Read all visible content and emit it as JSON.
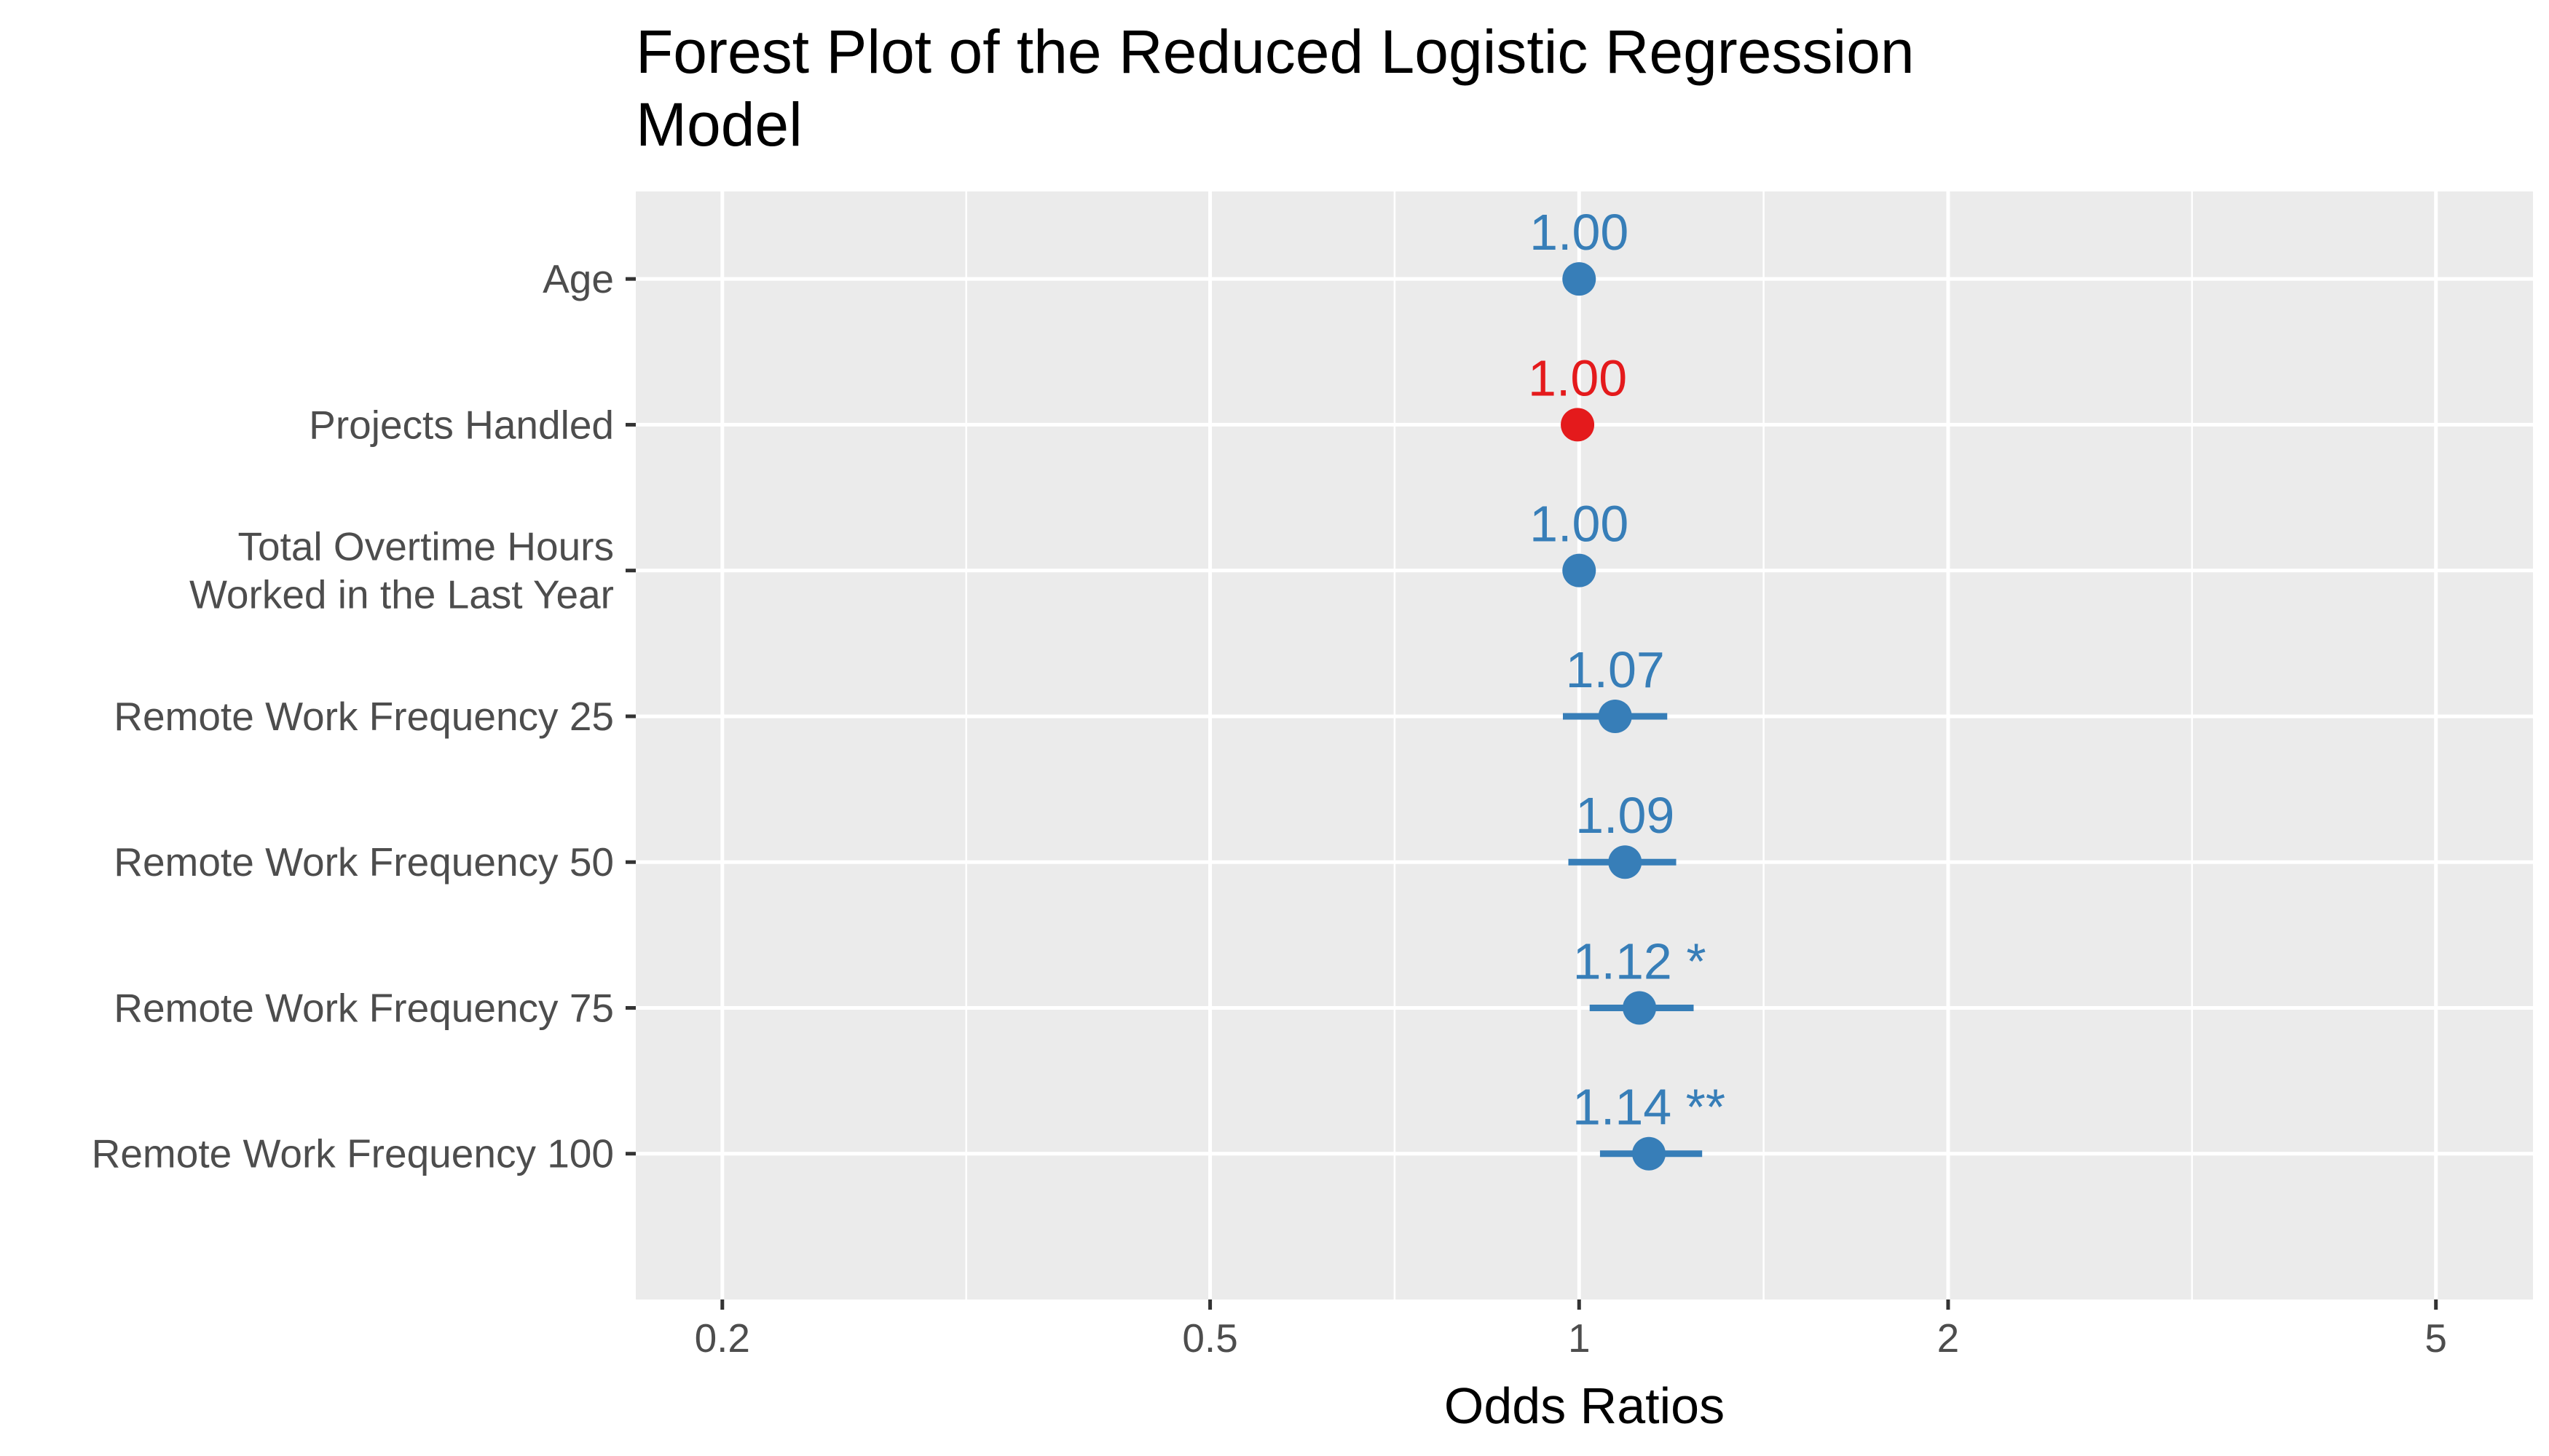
{
  "chart_data": {
    "type": "forest",
    "title_lines": [
      "Forest Plot of the Reduced Logistic Regression",
      "Model"
    ],
    "xlabel": "Odds Ratios",
    "ylabel": "",
    "x_scale": "log",
    "xlim": [
      0.17,
      6.0
    ],
    "x_ticks": [
      0.2,
      0.5,
      1,
      2,
      5
    ],
    "x_tick_labels": [
      "0.2",
      "0.5",
      "1",
      "2",
      "5"
    ],
    "grid": true,
    "legend": "none",
    "colors": {
      "positive": "#377eb8",
      "negative": "#e41a1c",
      "panel": "#ebebeb",
      "grid": "#ffffff"
    },
    "rows": [
      {
        "label": "Age",
        "or": 1.0,
        "lo": 1.0,
        "hi": 1.0,
        "label_text": "1.00",
        "color": "#377eb8"
      },
      {
        "label": "Projects Handled",
        "or": 0.997,
        "lo": 0.997,
        "hi": 0.997,
        "label_text": "1.00",
        "color": "#e41a1c"
      },
      {
        "label": "Total Overtime Hours\nWorked in the Last Year",
        "or": 1.0,
        "lo": 1.0,
        "hi": 1.0,
        "label_text": "1.00",
        "color": "#377eb8"
      },
      {
        "label": "Remote Work Frequency 25",
        "or": 1.07,
        "lo": 0.97,
        "hi": 1.18,
        "label_text": "1.07",
        "color": "#377eb8"
      },
      {
        "label": "Remote Work Frequency 50",
        "or": 1.09,
        "lo": 0.98,
        "hi": 1.2,
        "label_text": "1.09",
        "color": "#377eb8"
      },
      {
        "label": "Remote Work Frequency 75",
        "or": 1.12,
        "lo": 1.02,
        "hi": 1.24,
        "label_text": "1.12 *",
        "color": "#377eb8"
      },
      {
        "label": "Remote Work Frequency 100",
        "or": 1.14,
        "lo": 1.04,
        "hi": 1.26,
        "label_text": "1.14 **",
        "color": "#377eb8"
      }
    ]
  }
}
